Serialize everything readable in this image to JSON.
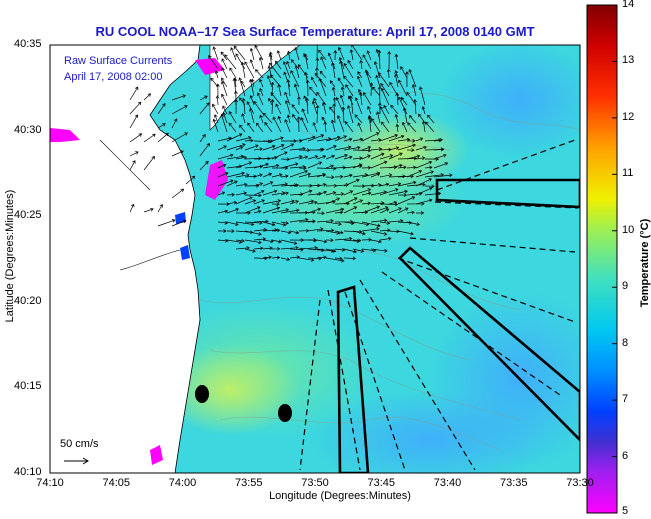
{
  "title": "RU COOL  NOAA–17  Sea Surface Temperature:  April 17, 2008 0140 GMT",
  "legend": {
    "line1": "Raw Surface Currents",
    "line2": "April 17, 2008 02:00"
  },
  "axes": {
    "xlabel": "Longitude (Degrees:Minutes)",
    "ylabel": "Latitude (Degrees:Minutes)",
    "x_ticks": [
      "74:10",
      "74:05",
      "74:00",
      "73:55",
      "73:50",
      "73:45",
      "73:40",
      "73:35",
      "73:30"
    ],
    "y_ticks": [
      "40:35",
      "40:30",
      "40:25",
      "40:20",
      "40:15",
      "40:10"
    ]
  },
  "colorbar": {
    "label": "Temperature (°C)",
    "min": 5,
    "max": 14,
    "ticks": [
      "14",
      "13",
      "12",
      "11",
      "10",
      "9",
      "8",
      "7",
      "6",
      "5"
    ]
  },
  "scale_label": "50 cm/s",
  "colors": {
    "title": "#1a1ac8",
    "water_dominant": "#3cd7df",
    "land": "#ffffff"
  }
}
